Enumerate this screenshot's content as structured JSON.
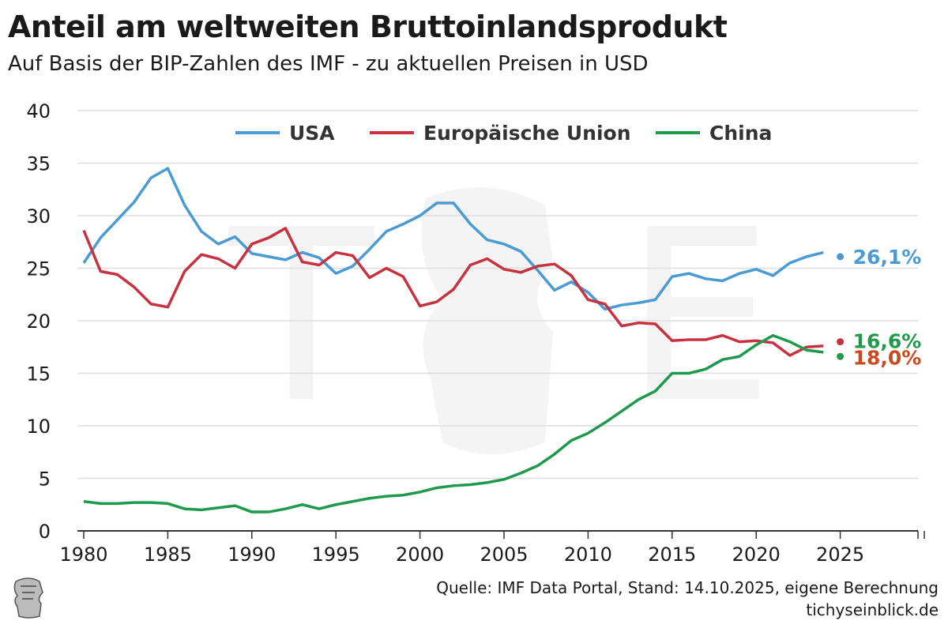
{
  "header": {
    "title": "Anteil am weltweiten Bruttoinlandsprodukt",
    "subtitle": "Auf Basis der BIP-Zahlen des IMF - zu aktuellen Preisen in USD"
  },
  "footer": {
    "source": "Quelle: IMF Data Portal, Stand: 14.10.2025, eigene Berechnung",
    "site": "tichyseinblick.de"
  },
  "colors": {
    "usa": "#4a9bd4",
    "eu": "#c8313f",
    "china": "#1f9a4c",
    "eu_label": "#cc4a1f",
    "grid": "#dedede",
    "axis": "#333333"
  },
  "chart_data": {
    "type": "line",
    "ylim": [
      0,
      40
    ],
    "xlim": [
      1980,
      2030
    ],
    "yticks": [
      0,
      5,
      10,
      15,
      20,
      25,
      30,
      35,
      40
    ],
    "xticks": [
      1980,
      1985,
      1990,
      1995,
      2000,
      2005,
      2010,
      2015,
      2020,
      2025
    ],
    "grid": true,
    "legend_position": "top",
    "x": [
      1980,
      1981,
      1982,
      1983,
      1984,
      1985,
      1986,
      1987,
      1988,
      1989,
      1990,
      1991,
      1992,
      1993,
      1994,
      1995,
      1996,
      1997,
      1998,
      1999,
      2000,
      2001,
      2002,
      2003,
      2004,
      2005,
      2006,
      2007,
      2008,
      2009,
      2010,
      2011,
      2012,
      2013,
      2014,
      2015,
      2016,
      2017,
      2018,
      2019,
      2020,
      2021,
      2022,
      2023,
      2024,
      2025
    ],
    "series": [
      {
        "key": "usa",
        "name": "USA",
        "end_label": "26,1%",
        "values": [
          25.5,
          27.9,
          29.6,
          31.3,
          33.6,
          34.5,
          31.0,
          28.5,
          27.3,
          28.0,
          26.4,
          26.1,
          25.8,
          26.5,
          26.0,
          24.5,
          25.2,
          26.8,
          28.5,
          29.2,
          30.0,
          31.2,
          31.2,
          29.2,
          27.7,
          27.3,
          26.6,
          24.8,
          22.9,
          23.7,
          22.7,
          21.1,
          21.5,
          21.7,
          22.0,
          24.2,
          24.5,
          24.0,
          23.8,
          24.5,
          24.9,
          24.3,
          25.5,
          26.1,
          26.5,
          26.1
        ]
      },
      {
        "key": "eu",
        "name": "Europäische Union",
        "end_label": "18,0%",
        "values": [
          28.6,
          24.7,
          24.4,
          23.2,
          21.6,
          21.3,
          24.7,
          26.3,
          25.9,
          25.0,
          27.3,
          27.9,
          28.8,
          25.6,
          25.3,
          26.5,
          26.2,
          24.1,
          25.0,
          24.2,
          21.4,
          21.8,
          23.0,
          25.3,
          25.9,
          24.9,
          24.6,
          25.2,
          25.4,
          24.3,
          22.0,
          21.6,
          19.5,
          19.8,
          19.7,
          18.1,
          18.2,
          18.2,
          18.6,
          18.0,
          18.1,
          17.9,
          16.7,
          17.5,
          17.6,
          18.0
        ]
      },
      {
        "key": "china",
        "name": "China",
        "end_label": "16,6%",
        "values": [
          2.8,
          2.6,
          2.6,
          2.7,
          2.7,
          2.6,
          2.1,
          2.0,
          2.2,
          2.4,
          1.8,
          1.8,
          2.1,
          2.5,
          2.1,
          2.5,
          2.8,
          3.1,
          3.3,
          3.4,
          3.7,
          4.1,
          4.3,
          4.4,
          4.6,
          4.9,
          5.5,
          6.2,
          7.3,
          8.6,
          9.3,
          10.3,
          11.4,
          12.5,
          13.3,
          15.0,
          15.0,
          15.4,
          16.3,
          16.6,
          17.7,
          18.6,
          18.0,
          17.2,
          17.0,
          16.6
        ]
      }
    ]
  }
}
